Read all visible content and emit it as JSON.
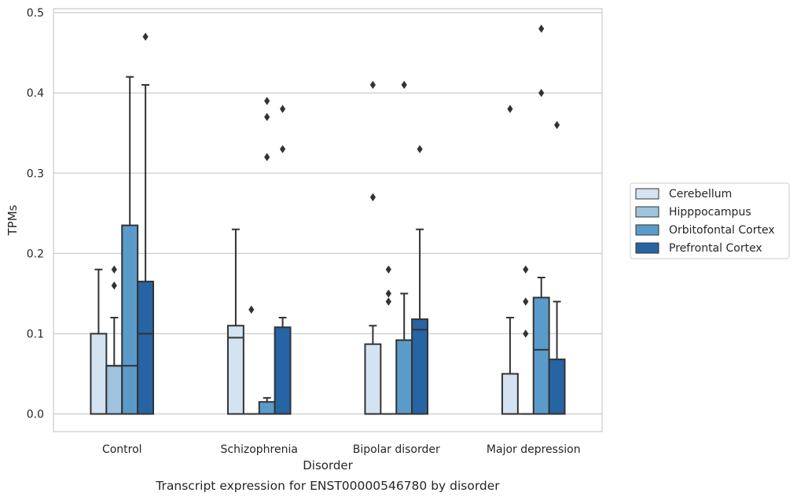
{
  "chart_data": {
    "type": "box",
    "caption": "Transcript expression for ENST00000546780 by disorder",
    "xlabel": "Disorder",
    "ylabel": "TPMs",
    "ylim": [
      -0.022,
      0.505
    ],
    "yticks": [
      0.0,
      0.1,
      0.2,
      0.3,
      0.4,
      0.5
    ],
    "ytick_labels": [
      "0.0",
      "0.1",
      "0.2",
      "0.3",
      "0.4",
      "0.5"
    ],
    "grid": "horizontal",
    "legend_position": "right",
    "categories": [
      "Control",
      "Schizophrenia",
      "Bipolar disorder",
      "Major depression"
    ],
    "series": [
      {
        "name": "Cerebellum",
        "color": "#d3e3f1",
        "boxes": [
          {
            "q1": 0.0,
            "median": 0.0,
            "q3": 0.1,
            "whisker_low": 0.0,
            "whisker_high": 0.18,
            "outliers": []
          },
          {
            "q1": 0.0,
            "median": 0.095,
            "q3": 0.11,
            "whisker_low": 0.0,
            "whisker_high": 0.23,
            "outliers": []
          },
          {
            "q1": 0.0,
            "median": 0.0,
            "q3": 0.087,
            "whisker_low": 0.0,
            "whisker_high": 0.11,
            "outliers": [
              0.27,
              0.41
            ]
          },
          {
            "q1": 0.0,
            "median": 0.0,
            "q3": 0.05,
            "whisker_low": 0.0,
            "whisker_high": 0.12,
            "outliers": [
              0.38
            ]
          }
        ]
      },
      {
        "name": "Hipppocampus",
        "color": "#a0c4de",
        "boxes": [
          {
            "q1": 0.0,
            "median": 0.06,
            "q3": 0.06,
            "whisker_low": 0.0,
            "whisker_high": 0.12,
            "outliers": [
              0.16,
              0.18
            ]
          },
          {
            "q1": 0.0,
            "median": 0.0,
            "q3": 0.0,
            "whisker_low": 0.0,
            "whisker_high": 0.0,
            "outliers": [
              0.13
            ]
          },
          {
            "q1": 0.0,
            "median": 0.0,
            "q3": 0.0,
            "whisker_low": 0.0,
            "whisker_high": 0.0,
            "outliers": [
              0.14,
              0.15,
              0.18
            ]
          },
          {
            "q1": 0.0,
            "median": 0.0,
            "q3": 0.0,
            "whisker_low": 0.0,
            "whisker_high": 0.0,
            "outliers": [
              0.1,
              0.14,
              0.18
            ]
          }
        ]
      },
      {
        "name": "Orbitofontal Cortex",
        "color": "#5a9bc9",
        "boxes": [
          {
            "q1": 0.0,
            "median": 0.06,
            "q3": 0.235,
            "whisker_low": 0.0,
            "whisker_high": 0.42,
            "outliers": []
          },
          {
            "q1": 0.0,
            "median": 0.0,
            "q3": 0.015,
            "whisker_low": 0.0,
            "whisker_high": 0.02,
            "outliers": [
              0.32,
              0.37,
              0.39
            ]
          },
          {
            "q1": 0.0,
            "median": 0.0,
            "q3": 0.092,
            "whisker_low": 0.0,
            "whisker_high": 0.15,
            "outliers": [
              0.41
            ]
          },
          {
            "q1": 0.0,
            "median": 0.08,
            "q3": 0.145,
            "whisker_low": 0.0,
            "whisker_high": 0.17,
            "outliers": [
              0.4,
              0.48
            ]
          }
        ]
      },
      {
        "name": "Prefrontal Cortex",
        "color": "#2664a3",
        "boxes": [
          {
            "q1": 0.0,
            "median": 0.1,
            "q3": 0.165,
            "whisker_low": 0.0,
            "whisker_high": 0.41,
            "outliers": [
              0.47
            ]
          },
          {
            "q1": 0.0,
            "median": 0.0,
            "q3": 0.108,
            "whisker_low": 0.0,
            "whisker_high": 0.12,
            "outliers": [
              0.33,
              0.38
            ]
          },
          {
            "q1": 0.0,
            "median": 0.105,
            "q3": 0.118,
            "whisker_low": 0.0,
            "whisker_high": 0.23,
            "outliers": [
              0.33
            ]
          },
          {
            "q1": 0.0,
            "median": 0.0,
            "q3": 0.068,
            "whisker_low": 0.0,
            "whisker_high": 0.14,
            "outliers": [
              0.36
            ]
          }
        ]
      }
    ]
  }
}
